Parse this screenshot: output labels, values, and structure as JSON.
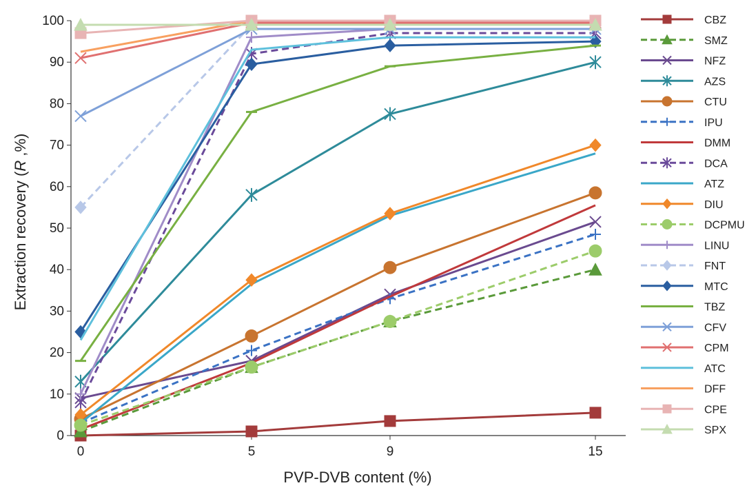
{
  "chart_data": {
    "type": "line",
    "title": "",
    "xlabel": "PVP-DVB content (%)",
    "ylabel_main": "Extraction recovery (",
    "ylabel_italic": "R",
    "ylabel_tail": " ,%)",
    "x": [
      0,
      5,
      9,
      15
    ],
    "x_tick_labels": [
      "0",
      "5",
      "9",
      "15"
    ],
    "ylim": [
      0,
      100
    ],
    "y_ticks": [
      0,
      10,
      20,
      30,
      40,
      50,
      60,
      70,
      80,
      90,
      100
    ],
    "legend_position": "right",
    "grid": false,
    "series": [
      {
        "name": "CBZ",
        "values": [
          0,
          1,
          3.5,
          5.5
        ],
        "color": "#a33b3b",
        "dash": false,
        "marker": "square"
      },
      {
        "name": "SMZ",
        "values": [
          1,
          16.5,
          27.5,
          40
        ],
        "color": "#5a9a3a",
        "dash": true,
        "marker": "triangle"
      },
      {
        "name": "NFZ",
        "values": [
          9,
          18,
          34,
          51.5
        ],
        "color": "#6a4a8f",
        "dash": false,
        "marker": "x"
      },
      {
        "name": "AZS",
        "values": [
          13,
          58,
          77.5,
          90
        ],
        "color": "#2e8b9a",
        "dash": false,
        "marker": "star"
      },
      {
        "name": "CTU",
        "values": [
          4,
          24,
          40.5,
          58.5
        ],
        "color": "#c8742f",
        "dash": false,
        "marker": "circle"
      },
      {
        "name": "IPU",
        "values": [
          3,
          20.5,
          33,
          48.5
        ],
        "color": "#3a72c4",
        "dash": true,
        "marker": "plus"
      },
      {
        "name": "DMM",
        "values": [
          1.5,
          17.5,
          33.5,
          55.5
        ],
        "color": "#c0393b",
        "dash": false,
        "marker": "none"
      },
      {
        "name": "DCA",
        "values": [
          8,
          92,
          97,
          97
        ],
        "color": "#6a4a9a",
        "dash": true,
        "marker": "star"
      },
      {
        "name": "ATZ",
        "values": [
          3,
          36.5,
          53,
          68
        ],
        "color": "#3aa7c8",
        "dash": false,
        "marker": "none"
      },
      {
        "name": "DIU",
        "values": [
          5,
          37.5,
          53.5,
          70
        ],
        "color": "#f0882a",
        "dash": false,
        "marker": "diamond"
      },
      {
        "name": "DCPMU",
        "values": [
          2.5,
          16.5,
          27.5,
          44.5
        ],
        "color": "#9ccc6a",
        "dash": true,
        "marker": "circle"
      },
      {
        "name": "LINU",
        "values": [
          10,
          96,
          98,
          98
        ],
        "color": "#a08cc8",
        "dash": false,
        "marker": "plus"
      },
      {
        "name": "FNT",
        "values": [
          55,
          99,
          99,
          99
        ],
        "color": "#b8c8e8",
        "dash": true,
        "marker": "diamond"
      },
      {
        "name": "MTC",
        "values": [
          25,
          89.5,
          94,
          95
        ],
        "color": "#2a5ea0",
        "dash": false,
        "marker": "diamond"
      },
      {
        "name": "TBZ",
        "values": [
          18,
          78,
          89,
          94
        ],
        "color": "#78b042",
        "dash": false,
        "marker": "dash"
      },
      {
        "name": "CFV",
        "values": [
          77,
          98,
          98,
          98
        ],
        "color": "#7ea0d8",
        "dash": false,
        "marker": "x"
      },
      {
        "name": "CPM",
        "values": [
          91,
          99.5,
          99.5,
          99.5
        ],
        "color": "#e07070",
        "dash": false,
        "marker": "x"
      },
      {
        "name": "ATC",
        "values": [
          23,
          93,
          96,
          96
        ],
        "color": "#5ec0dc",
        "dash": false,
        "marker": "none"
      },
      {
        "name": "DFF",
        "values": [
          92.5,
          100,
          100,
          100
        ],
        "color": "#f8a060",
        "dash": false,
        "marker": "none"
      },
      {
        "name": "CPE",
        "values": [
          97,
          100,
          100,
          100
        ],
        "color": "#e8b4b4",
        "dash": false,
        "marker": "square"
      },
      {
        "name": "SPX",
        "values": [
          99,
          99,
          99,
          99
        ],
        "color": "#c4dcb0",
        "dash": false,
        "marker": "triangle"
      }
    ]
  }
}
